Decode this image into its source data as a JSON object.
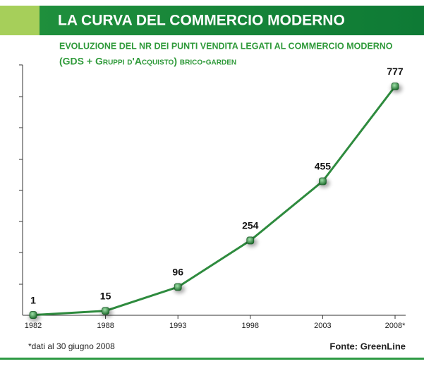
{
  "chart_data": {
    "type": "line",
    "title": "LA CURVA DEL COMMERCIO MODERNO",
    "subtitle": "EVOLUZIONE DEL NR DEI PUNTI VENDITA LEGATI AL COMMERCIO MODERNO",
    "subtitle2": "(GDS + Gruppi d'Acquisto) brico-garden",
    "categories": [
      "1982",
      "1988",
      "1993",
      "1998",
      "2003",
      "2008*"
    ],
    "series": [
      {
        "name": "Punti vendita",
        "color": "#2e8b3e",
        "values": [
          1,
          15,
          96,
          254,
          455,
          777
        ]
      }
    ],
    "ylim": [
      0,
      850
    ],
    "note": "*dati al 30 giugno 2008",
    "source": "Fonte: GreenLine"
  }
}
